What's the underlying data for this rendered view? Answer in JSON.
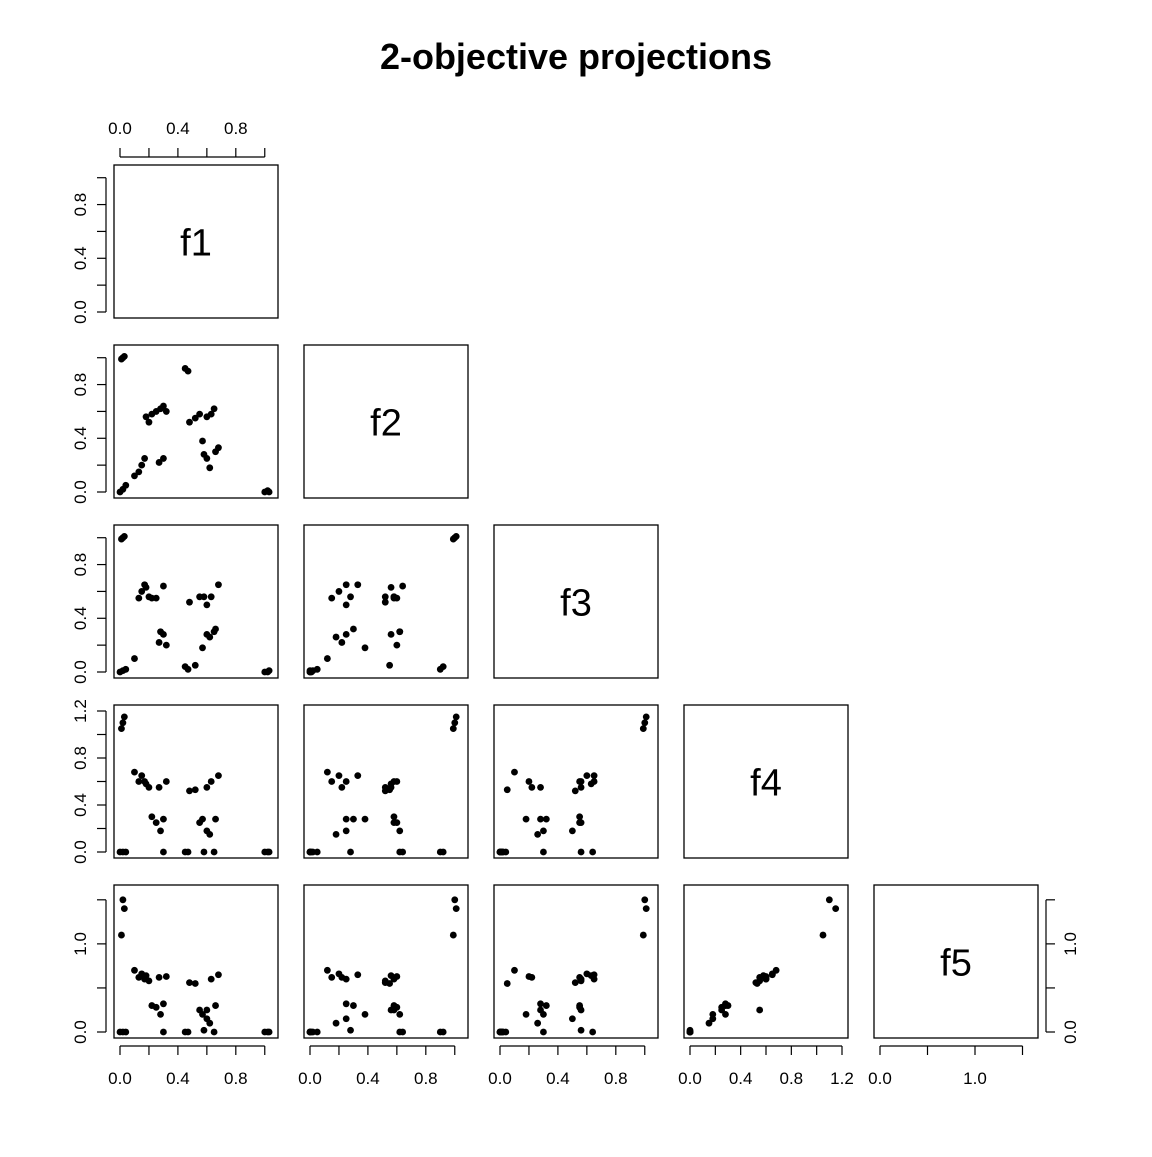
{
  "chart_data": {
    "type": "scatter",
    "title": "2-objective projections",
    "variables": [
      "f1",
      "f2",
      "f3",
      "f4",
      "f5"
    ],
    "ranges": {
      "f1": [
        0,
        1.05
      ],
      "f2": [
        0,
        1.05
      ],
      "f3": [
        0,
        1.05
      ],
      "f4": [
        0,
        1.2
      ],
      "f5": [
        0,
        1.6
      ]
    },
    "ticks": {
      "f1": [
        "0.0",
        "0.4",
        "0.8"
      ],
      "f2": [
        "0.0",
        "0.4",
        "0.8"
      ],
      "f3": [
        "0.0",
        "0.4",
        "0.8"
      ],
      "f4": [
        "0.0",
        "0.4",
        "0.8",
        "1.2"
      ],
      "f5": [
        "0.0",
        "1.0"
      ]
    },
    "points": [
      {
        "f1": 0.02,
        "f2": 1.0,
        "f3": 1.0,
        "f4": 1.1,
        "f5": 1.5
      },
      {
        "f1": 0.03,
        "f2": 1.01,
        "f3": 1.01,
        "f4": 1.15,
        "f5": 1.4
      },
      {
        "f1": 0.01,
        "f2": 0.99,
        "f3": 0.99,
        "f4": 1.05,
        "f5": 1.1
      },
      {
        "f1": 0.0,
        "f2": 0.0,
        "f3": 0.0,
        "f4": 0.0,
        "f5": 0.0
      },
      {
        "f1": 0.02,
        "f2": 0.02,
        "f3": 0.01,
        "f4": 0.0,
        "f5": 0.0
      },
      {
        "f1": 0.04,
        "f2": 0.05,
        "f3": 0.02,
        "f4": 0.0,
        "f5": 0.0
      },
      {
        "f1": 0.1,
        "f2": 0.12,
        "f3": 0.1,
        "f4": 0.68,
        "f5": 0.7
      },
      {
        "f1": 0.13,
        "f2": 0.15,
        "f3": 0.55,
        "f4": 0.6,
        "f5": 0.62
      },
      {
        "f1": 0.15,
        "f2": 0.2,
        "f3": 0.6,
        "f4": 0.65,
        "f5": 0.66
      },
      {
        "f1": 0.17,
        "f2": 0.25,
        "f3": 0.65,
        "f4": 0.6,
        "f5": 0.6
      },
      {
        "f1": 0.18,
        "f2": 0.56,
        "f3": 0.63,
        "f4": 0.58,
        "f5": 0.64
      },
      {
        "f1": 0.2,
        "f2": 0.52,
        "f3": 0.56,
        "f4": 0.55,
        "f5": 0.58
      },
      {
        "f1": 0.22,
        "f2": 0.58,
        "f3": 0.55,
        "f4": 0.3,
        "f5": 0.3
      },
      {
        "f1": 0.25,
        "f2": 0.6,
        "f3": 0.55,
        "f4": 0.25,
        "f5": 0.28
      },
      {
        "f1": 0.28,
        "f2": 0.62,
        "f3": 0.3,
        "f4": 0.18,
        "f5": 0.2
      },
      {
        "f1": 0.3,
        "f2": 0.25,
        "f3": 0.28,
        "f4": 0.28,
        "f5": 0.32
      },
      {
        "f1": 0.27,
        "f2": 0.22,
        "f3": 0.22,
        "f4": 0.55,
        "f5": 0.62
      },
      {
        "f1": 0.32,
        "f2": 0.6,
        "f3": 0.2,
        "f4": 0.6,
        "f5": 0.63
      },
      {
        "f1": 0.3,
        "f2": 0.64,
        "f3": 0.64,
        "f4": 0.0,
        "f5": 0.0
      },
      {
        "f1": 0.45,
        "f2": 0.92,
        "f3": 0.04,
        "f4": 0.0,
        "f5": 0.0
      },
      {
        "f1": 0.47,
        "f2": 0.9,
        "f3": 0.02,
        "f4": 0.0,
        "f5": 0.0
      },
      {
        "f1": 0.48,
        "f2": 0.52,
        "f3": 0.52,
        "f4": 0.52,
        "f5": 0.56
      },
      {
        "f1": 0.52,
        "f2": 0.55,
        "f3": 0.05,
        "f4": 0.53,
        "f5": 0.55
      },
      {
        "f1": 0.55,
        "f2": 0.58,
        "f3": 0.56,
        "f4": 0.25,
        "f5": 0.25
      },
      {
        "f1": 0.57,
        "f2": 0.38,
        "f3": 0.18,
        "f4": 0.28,
        "f5": 0.2
      },
      {
        "f1": 0.58,
        "f2": 0.28,
        "f3": 0.56,
        "f4": 0.0,
        "f5": 0.02
      },
      {
        "f1": 0.6,
        "f2": 0.25,
        "f3": 0.5,
        "f4": 0.18,
        "f5": 0.15
      },
      {
        "f1": 0.62,
        "f2": 0.18,
        "f3": 0.26,
        "f4": 0.15,
        "f5": 0.1
      },
      {
        "f1": 0.6,
        "f2": 0.56,
        "f3": 0.28,
        "f4": 0.55,
        "f5": 0.25
      },
      {
        "f1": 0.63,
        "f2": 0.58,
        "f3": 0.56,
        "f4": 0.6,
        "f5": 0.6
      },
      {
        "f1": 0.65,
        "f2": 0.62,
        "f3": 0.3,
        "f4": 0.0,
        "f5": 0.0
      },
      {
        "f1": 0.66,
        "f2": 0.3,
        "f3": 0.32,
        "f4": 0.28,
        "f5": 0.3
      },
      {
        "f1": 0.68,
        "f2": 0.33,
        "f3": 0.65,
        "f4": 0.65,
        "f5": 0.65
      },
      {
        "f1": 1.0,
        "f2": 0.0,
        "f3": 0.0,
        "f4": 0.0,
        "f5": 0.0
      },
      {
        "f1": 1.02,
        "f2": 0.01,
        "f3": 0.0,
        "f4": 0.0,
        "f5": 0.0
      },
      {
        "f1": 1.03,
        "f2": 0.0,
        "f3": 0.01,
        "f4": 0.0,
        "f5": 0.0
      }
    ]
  }
}
